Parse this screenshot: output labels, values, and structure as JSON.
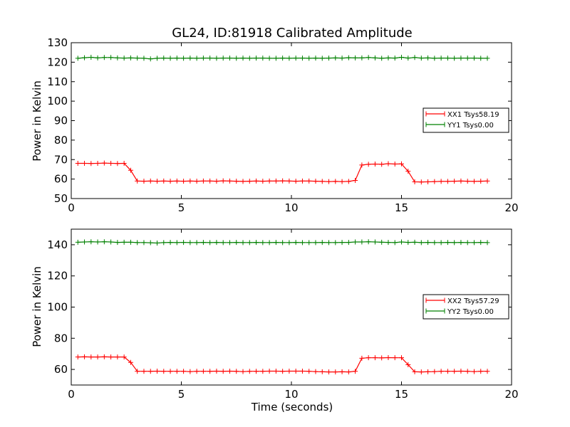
{
  "chart_data": [
    {
      "type": "line",
      "title": "GL24, ID:81918 Calibrated Amplitude",
      "xlabel": "",
      "ylabel": "Power in Kelvin",
      "xlim": [
        0,
        20
      ],
      "ylim": [
        50,
        130
      ],
      "xticks": [
        "0",
        "5",
        "10",
        "15",
        "20"
      ],
      "yticks": [
        "50",
        "60",
        "70",
        "80",
        "90",
        "100",
        "110",
        "120",
        "130"
      ],
      "grid": false,
      "legend_position": "right",
      "series": [
        {
          "name": "XX1 Tsys58.19",
          "color": "#ff0000",
          "x": [
            0.3,
            0.6,
            0.9,
            1.2,
            1.5,
            1.8,
            2.1,
            2.4,
            2.7,
            3.0,
            3.3,
            3.6,
            3.9,
            4.2,
            4.5,
            4.8,
            5.1,
            5.4,
            5.7,
            6.0,
            6.3,
            6.6,
            6.9,
            7.2,
            7.5,
            7.8,
            8.1,
            8.4,
            8.7,
            9.0,
            9.3,
            9.6,
            9.9,
            10.2,
            10.5,
            10.8,
            11.1,
            11.4,
            11.7,
            12.0,
            12.3,
            12.6,
            12.9,
            13.2,
            13.5,
            13.8,
            14.1,
            14.4,
            14.7,
            15.0,
            15.3,
            15.6,
            15.9,
            16.2,
            16.5,
            16.8,
            17.1,
            17.4,
            17.7,
            18.0,
            18.3,
            18.6,
            18.9
          ],
          "y": [
            68.1,
            68.1,
            68.0,
            68.1,
            68.2,
            68.1,
            68.0,
            68.1,
            64.5,
            59.0,
            58.9,
            59.0,
            58.9,
            59.0,
            58.9,
            59.0,
            58.9,
            59.0,
            58.9,
            59.0,
            59.0,
            58.9,
            59.1,
            59.0,
            58.9,
            58.8,
            58.9,
            59.0,
            58.9,
            59.0,
            59.0,
            59.1,
            59.0,
            58.9,
            59.0,
            59.0,
            58.9,
            58.8,
            58.7,
            58.8,
            58.7,
            58.8,
            59.3,
            67.2,
            67.6,
            67.7,
            67.6,
            67.9,
            67.7,
            67.8,
            64.0,
            58.6,
            58.5,
            58.6,
            58.7,
            58.8,
            58.8,
            58.9,
            59.0,
            58.9,
            58.8,
            58.9,
            59.0
          ]
        },
        {
          "name": "YY1 Tsys0.00",
          "color": "#008000",
          "x": [
            0.3,
            0.6,
            0.9,
            1.2,
            1.5,
            1.8,
            2.1,
            2.4,
            2.7,
            3.0,
            3.3,
            3.6,
            3.9,
            4.2,
            4.5,
            4.8,
            5.1,
            5.4,
            5.7,
            6.0,
            6.3,
            6.6,
            6.9,
            7.2,
            7.5,
            7.8,
            8.1,
            8.4,
            8.7,
            9.0,
            9.3,
            9.6,
            9.9,
            10.2,
            10.5,
            10.8,
            11.1,
            11.4,
            11.7,
            12.0,
            12.3,
            12.6,
            12.9,
            13.2,
            13.5,
            13.8,
            14.1,
            14.4,
            14.7,
            15.0,
            15.3,
            15.6,
            15.9,
            16.2,
            16.5,
            16.8,
            17.1,
            17.4,
            17.7,
            18.0,
            18.3,
            18.6,
            18.9
          ],
          "y": [
            122.0,
            122.3,
            122.5,
            122.2,
            122.4,
            122.4,
            122.2,
            122.1,
            122.2,
            122.1,
            122.0,
            121.7,
            122.0,
            122.1,
            122.0,
            122.1,
            122.0,
            122.1,
            122.0,
            122.1,
            122.1,
            122.0,
            122.1,
            122.1,
            122.0,
            122.1,
            122.0,
            122.1,
            122.1,
            122.0,
            122.0,
            122.1,
            122.0,
            122.1,
            122.1,
            122.0,
            122.1,
            122.0,
            122.1,
            122.2,
            122.1,
            122.3,
            122.2,
            122.2,
            122.4,
            122.2,
            122.0,
            122.2,
            122.1,
            122.5,
            122.1,
            122.4,
            122.1,
            122.2,
            122.0,
            122.1,
            122.1,
            122.0,
            122.1,
            122.1,
            122.1,
            122.0,
            122.0
          ]
        }
      ]
    },
    {
      "type": "line",
      "title": "",
      "xlabel": "Time (seconds)",
      "ylabel": "Power in Kelvin",
      "xlim": [
        0,
        20
      ],
      "ylim": [
        50,
        150
      ],
      "xticks": [
        "0",
        "5",
        "10",
        "15",
        "20"
      ],
      "yticks": [
        "60",
        "80",
        "100",
        "120",
        "140"
      ],
      "grid": false,
      "legend_position": "right",
      "series": [
        {
          "name": "XX2 Tsys57.29",
          "color": "#ff0000",
          "x": [
            0.3,
            0.6,
            0.9,
            1.2,
            1.5,
            1.8,
            2.1,
            2.4,
            2.7,
            3.0,
            3.3,
            3.6,
            3.9,
            4.2,
            4.5,
            4.8,
            5.1,
            5.4,
            5.7,
            6.0,
            6.3,
            6.6,
            6.9,
            7.2,
            7.5,
            7.8,
            8.1,
            8.4,
            8.7,
            9.0,
            9.3,
            9.6,
            9.9,
            10.2,
            10.5,
            10.8,
            11.1,
            11.4,
            11.7,
            12.0,
            12.3,
            12.6,
            12.9,
            13.2,
            13.5,
            13.8,
            14.1,
            14.4,
            14.7,
            15.0,
            15.3,
            15.6,
            15.9,
            16.2,
            16.5,
            16.8,
            17.1,
            17.4,
            17.7,
            18.0,
            18.3,
            18.6,
            18.9
          ],
          "y": [
            68.0,
            68.1,
            68.0,
            68.0,
            68.1,
            68.0,
            68.0,
            68.0,
            64.5,
            58.8,
            58.8,
            58.8,
            58.9,
            58.8,
            58.8,
            58.8,
            58.8,
            58.6,
            58.8,
            58.8,
            58.8,
            58.9,
            58.8,
            58.9,
            58.8,
            58.6,
            58.8,
            58.8,
            58.8,
            58.9,
            58.9,
            58.8,
            58.9,
            58.9,
            58.9,
            58.8,
            58.6,
            58.5,
            58.4,
            58.4,
            58.5,
            58.4,
            58.8,
            67.2,
            67.5,
            67.5,
            67.4,
            67.6,
            67.5,
            67.5,
            63.0,
            58.5,
            58.4,
            58.5,
            58.6,
            58.8,
            58.8,
            58.8,
            58.9,
            58.8,
            58.6,
            58.8,
            58.8
          ]
        },
        {
          "name": "YY2 Tsys0.00",
          "color": "#008000",
          "x": [
            0.3,
            0.6,
            0.9,
            1.2,
            1.5,
            1.8,
            2.1,
            2.4,
            2.7,
            3.0,
            3.3,
            3.6,
            3.9,
            4.2,
            4.5,
            4.8,
            5.1,
            5.4,
            5.7,
            6.0,
            6.3,
            6.6,
            6.9,
            7.2,
            7.5,
            7.8,
            8.1,
            8.4,
            8.7,
            9.0,
            9.3,
            9.6,
            9.9,
            10.2,
            10.5,
            10.8,
            11.1,
            11.4,
            11.7,
            12.0,
            12.3,
            12.6,
            12.9,
            13.2,
            13.5,
            13.8,
            14.1,
            14.4,
            14.7,
            15.0,
            15.3,
            15.6,
            15.9,
            16.2,
            16.5,
            16.8,
            17.1,
            17.4,
            17.7,
            18.0,
            18.3,
            18.6,
            18.9
          ],
          "y": [
            141.6,
            141.8,
            141.9,
            141.8,
            141.9,
            141.8,
            141.5,
            141.6,
            141.6,
            141.4,
            141.4,
            141.3,
            141.1,
            141.4,
            141.5,
            141.4,
            141.5,
            141.4,
            141.4,
            141.5,
            141.4,
            141.5,
            141.4,
            141.4,
            141.5,
            141.4,
            141.4,
            141.5,
            141.4,
            141.4,
            141.5,
            141.4,
            141.4,
            141.5,
            141.4,
            141.4,
            141.4,
            141.5,
            141.4,
            141.4,
            141.5,
            141.5,
            141.8,
            141.8,
            141.9,
            141.8,
            141.6,
            141.5,
            141.4,
            141.8,
            141.5,
            141.6,
            141.4,
            141.5,
            141.4,
            141.4,
            141.5,
            141.4,
            141.5,
            141.4,
            141.4,
            141.5,
            141.4
          ]
        }
      ]
    }
  ]
}
